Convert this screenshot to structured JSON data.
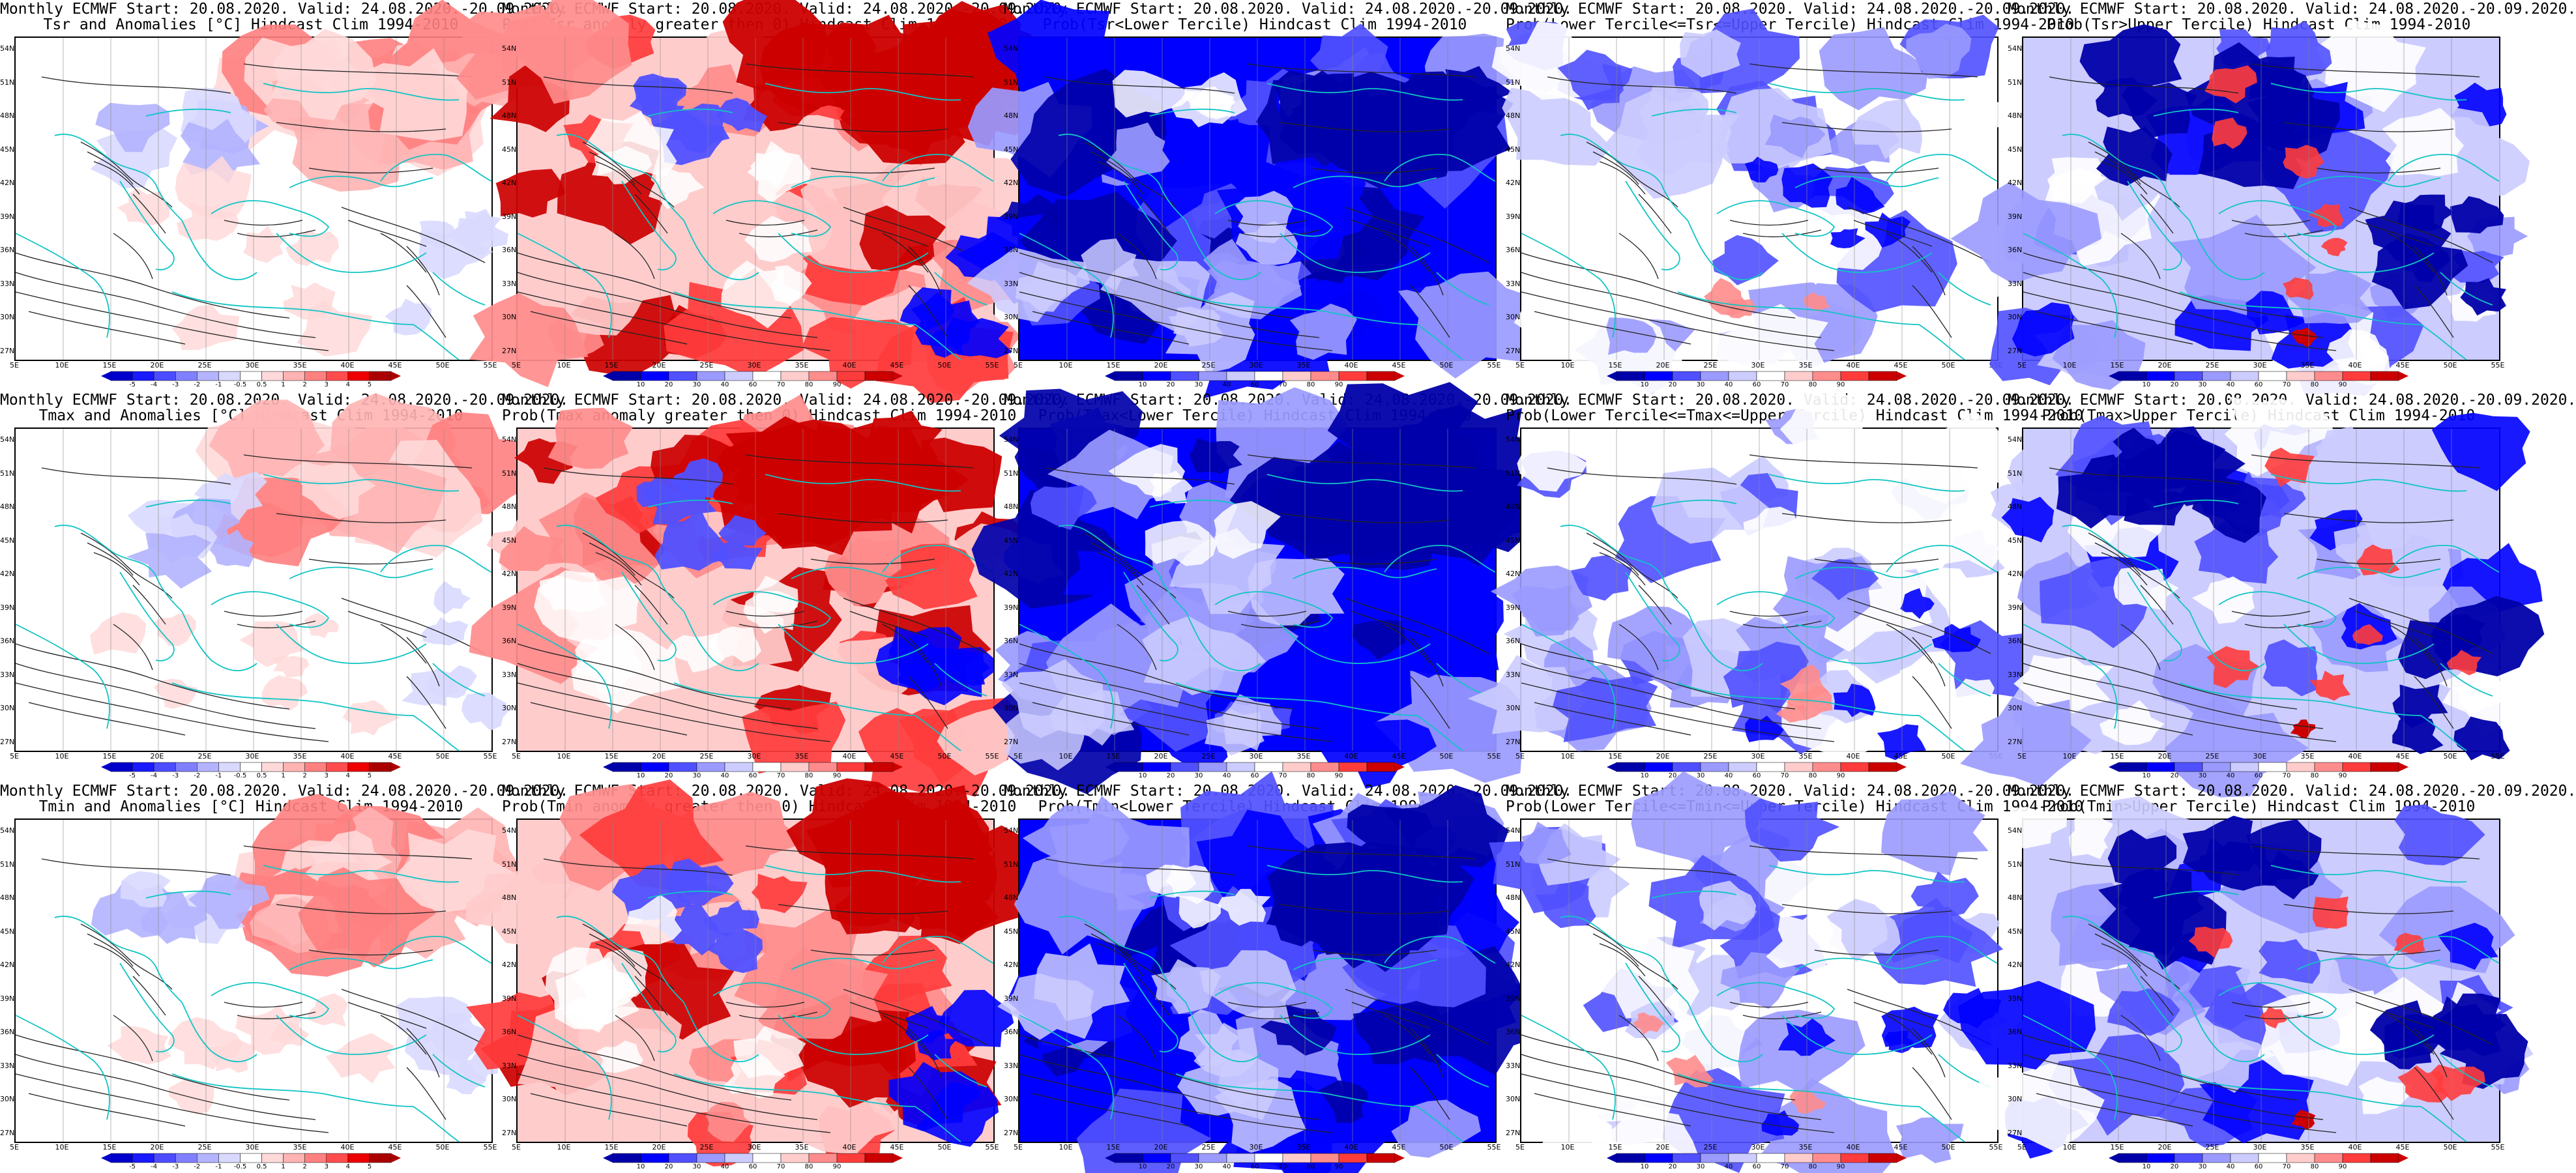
{
  "common": {
    "lat_labels": [
      "54N",
      "51N",
      "48N",
      "45N",
      "42N",
      "39N",
      "36N",
      "33N",
      "30N",
      "27N"
    ],
    "lon_labels": [
      "5E",
      "10E",
      "15E",
      "20E",
      "25E",
      "30E",
      "35E",
      "40E",
      "45E",
      "50E",
      "55E"
    ]
  },
  "panels": [
    {
      "title1": "Monthly ECMWF Start: 20.08.2020. Valid: 24.08.2020.-20.09.2020.",
      "title2": "Tsr and Anomalies [°C] Hindcast Clim 1994-2010",
      "kind": "anom"
    },
    {
      "title1": "Monthly ECMWF Start: 20.08.2020. Valid: 24.08.2020.-20.09.2020.",
      "title2": "Prob(Tsr anomaly greater then 0) Hindcast Clim 1994-2010",
      "kind": "pos"
    },
    {
      "title1": "Monthly ECMWF Start: 20.08.2020. Valid: 24.08.2020.-20.09.2020.",
      "title2": "Prob(Tsr<Lower Tercile) Hindcast Clim 1994-2010",
      "kind": "lower"
    },
    {
      "title1": "Monthly ECMWF Start: 20.08.2020. Valid: 24.08.2020.-20.09.2020.",
      "title2": "Prob(Lower Tercile<=Tsr<=Upper Tercile) Hindcast Clim 1994-2010",
      "kind": "mid"
    },
    {
      "title1": "Monthly ECMWF Start: 20.08.2020. Valid: 24.08.2020.-20.09.2020.",
      "title2": "Prob(Tsr>Upper Tercile) Hindcast Clim 1994-2010",
      "kind": "upper"
    },
    {
      "title1": "Monthly ECMWF Start: 20.08.2020. Valid: 24.08.2020.-20.09.2020.",
      "title2": "Tmax and Anomalies [°C] Hindcast Clim 1994-2010",
      "kind": "anom"
    },
    {
      "title1": "Monthly ECMWF Start: 20.08.2020. Valid: 24.08.2020.-20.09.2020.",
      "title2": "Prob(Tmax anomaly greater then 0) Hindcast Clim 1994-2010",
      "kind": "pos"
    },
    {
      "title1": "Monthly ECMWF Start: 20.08.2020. Valid: 24.08.2020.-20.09.2020.",
      "title2": "Prob(Tmax<Lower Tercile) Hindcast Clim 1994-2010",
      "kind": "lower"
    },
    {
      "title1": "Monthly ECMWF Start: 20.08.2020. Valid: 24.08.2020.-20.09.2020.",
      "title2": "Prob(Lower Tercile<=Tmax<=Upper Tercile) Hindcast Clim 1994-2010",
      "kind": "mid"
    },
    {
      "title1": "Monthly ECMWF Start: 20.08.2020. Valid: 24.08.2020.-20.09.2020.",
      "title2": "Prob(Tmax>Upper Tercile) Hindcast Clim 1994-2010",
      "kind": "upper"
    },
    {
      "title1": "Monthly ECMWF Start: 20.08.2020. Valid: 24.08.2020.-20.09.2020.",
      "title2": "Tmin and Anomalies [°C] Hindcast Clim 1994-2010",
      "kind": "anom"
    },
    {
      "title1": "Monthly ECMWF Start: 20.08.2020. Valid: 24.08.2020.-20.09.2020.",
      "title2": "Prob(Tmin anomaly greater then 0) Hindcast Clim 1994-2010",
      "kind": "pos"
    },
    {
      "title1": "Monthly ECMWF Start: 20.08.2020. Valid: 24.08.2020.-20.09.2020.",
      "title2": "Prob(Tmin<Lower Tercile) Hindcast Clim 1994-2010",
      "kind": "lower"
    },
    {
      "title1": "Monthly ECMWF Start: 20.08.2020. Valid: 24.08.2020.-20.09.2020.",
      "title2": "Prob(Lower Tercile<=Tmin<=Upper Tercile) Hindcast Clim 1994-2010",
      "kind": "mid"
    },
    {
      "title1": "Monthly ECMWF Start: 20.08.2020. Valid: 24.08.2020.-20.09.2020.",
      "title2": "Prob(Tmin>Upper Tercile) Hindcast Clim 1994-2010",
      "kind": "upper"
    }
  ],
  "colorbars": {
    "anom": {
      "labels": [
        "-5",
        "-4",
        "-3",
        "-2",
        "-1",
        "-0.5",
        "0.5",
        "1",
        "2",
        "3",
        "4",
        "5"
      ],
      "colors": [
        "#0000cc",
        "#1a1aff",
        "#4d4dff",
        "#8080ff",
        "#b3b3ff",
        "#d9d9ff",
        "#ffffff",
        "#ffd9d9",
        "#ffb3b3",
        "#ff8080",
        "#ff4d4d",
        "#ee0000",
        "#aa0000"
      ]
    },
    "prob": {
      "labels": [
        "10",
        "20",
        "30",
        "40",
        "60",
        "70",
        "80",
        "90"
      ],
      "colors": [
        "#0000aa",
        "#0000ff",
        "#5050ff",
        "#9a9aff",
        "#ccccff",
        "#ffffff",
        "#ffcccc",
        "#ff8c8c",
        "#ff3c3c",
        "#cc0000"
      ]
    }
  },
  "colors": {
    "contour": "#222222",
    "coastline": "#11c4c4",
    "frame": "#000000"
  }
}
